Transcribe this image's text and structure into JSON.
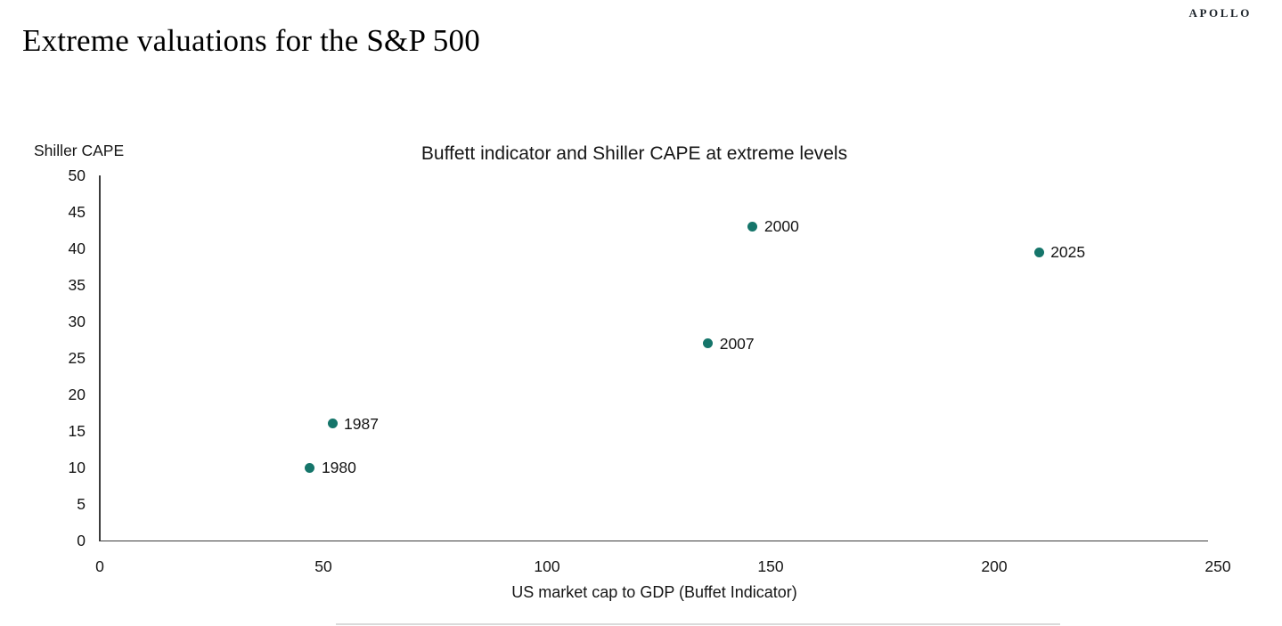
{
  "header": {
    "logo": "APOLLO",
    "title": "Extreme valuations for the S&P 500"
  },
  "chart_data": {
    "type": "scatter",
    "title": "Buffett indicator and Shiller CAPE at extreme levels",
    "xlabel": "US market cap to GDP (Buffet Indicator)",
    "ylabel": "Shiller CAPE",
    "xlim": [
      0,
      250
    ],
    "ylim": [
      0,
      50
    ],
    "xticks": [
      0,
      50,
      100,
      150,
      200,
      250
    ],
    "yticks": [
      0,
      5,
      10,
      15,
      20,
      25,
      30,
      35,
      40,
      45,
      50
    ],
    "grid": false,
    "legend": false,
    "point_color": "#15756a",
    "points": [
      {
        "label": "1980",
        "x": 47,
        "y": 10
      },
      {
        "label": "1987",
        "x": 52,
        "y": 16
      },
      {
        "label": "2007",
        "x": 136,
        "y": 27
      },
      {
        "label": "2000",
        "x": 146,
        "y": 43
      },
      {
        "label": "2025",
        "x": 210,
        "y": 39.5
      }
    ]
  }
}
